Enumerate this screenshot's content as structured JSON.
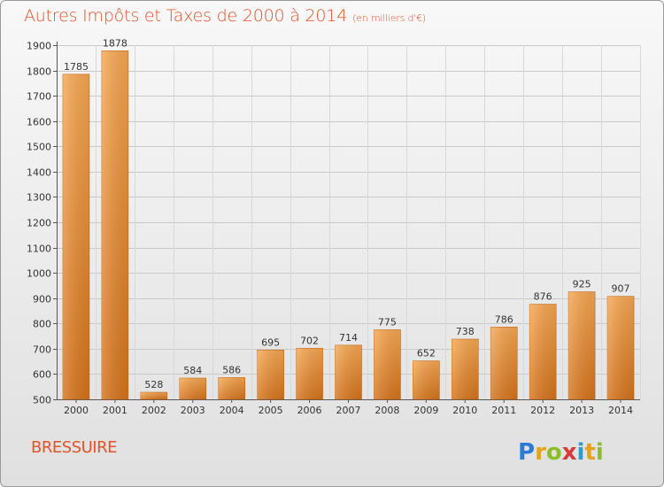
{
  "header": {
    "title": "Autres Impôts et Taxes de 2000 à 2014",
    "subtitle": "(en milliers d'€)"
  },
  "footer": {
    "city": "BRESSUIRE",
    "logo_text": "Proxiti"
  },
  "colors": {
    "bar_light": "#f5a04a",
    "bar_dark": "#d9781f",
    "title": "#e0542a",
    "grid": "#c8c8c8"
  },
  "chart_data": {
    "type": "bar",
    "title": "Autres Impôts et Taxes de 2000 à 2014",
    "subtitle": "(en milliers d'€)",
    "xlabel": "",
    "ylabel": "",
    "categories": [
      "2000",
      "2001",
      "2002",
      "2003",
      "2004",
      "2005",
      "2006",
      "2007",
      "2008",
      "2009",
      "2010",
      "2011",
      "2012",
      "2013",
      "2014"
    ],
    "values": [
      1785,
      1878,
      528,
      584,
      586,
      695,
      702,
      714,
      775,
      652,
      738,
      786,
      876,
      925,
      907
    ],
    "ylim": [
      500,
      1900
    ],
    "yticks": [
      500,
      600,
      700,
      800,
      900,
      1000,
      1100,
      1200,
      1300,
      1400,
      1500,
      1600,
      1700,
      1800,
      1900
    ],
    "grid": true,
    "legend": "none"
  }
}
